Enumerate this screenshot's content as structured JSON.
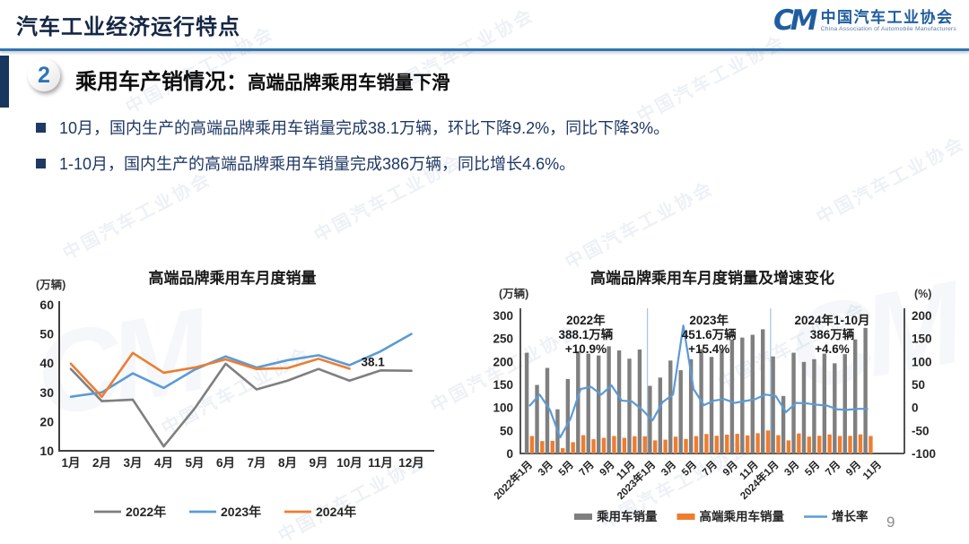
{
  "header": {
    "title": "汽车工业经济运行特点",
    "logo": {
      "mark": "CM",
      "org_cn": "中国汽车工业协会",
      "org_en": "China Association of Automobile Manufacturers"
    }
  },
  "section": {
    "number": "2",
    "title": "乘用车产销情况：",
    "subtitle": "高端品牌乘用车销量下滑"
  },
  "bullets": [
    "10月，国内生产的高端品牌乘用车销量完成38.1万辆，环比下降9.2%，同比下降3%。",
    "1-10月，国内生产的高端品牌乘用车销量完成386万辆，同比增长4.6%。"
  ],
  "page_number": "9",
  "watermark_text": "中国汽车工业协会",
  "colors": {
    "gray": "#7f7f7f",
    "blue": "#5b9bd5",
    "orange": "#ed7d31",
    "navy": "#1f3864",
    "rule_blue": "#2e75b6",
    "logo_blue": "#1f5da0",
    "axis": "#3f3f3f",
    "separator": "#a8c6e4",
    "text_dark": "#1a1a1a"
  },
  "chart_data": [
    {
      "type": "line",
      "title": "高端品牌乘用车月度销量",
      "unit": "(万辆)",
      "categories": [
        "1月",
        "2月",
        "3月",
        "4月",
        "5月",
        "6月",
        "7月",
        "8月",
        "9月",
        "10月",
        "11月",
        "12月"
      ],
      "axis_y": {
        "min": 10,
        "max": 60,
        "ticks": [
          10,
          20,
          30,
          40,
          50,
          60
        ]
      },
      "legend_position": "bottom",
      "grid": false,
      "series": [
        {
          "name": "2022年",
          "color": "gray",
          "values": [
            38,
            27,
            27.5,
            11.5,
            24.5,
            39.8,
            31,
            34,
            38,
            34,
            37.5,
            37.4
          ]
        },
        {
          "name": "2023年",
          "color": "blue",
          "values": [
            28.5,
            30,
            36.5,
            31.5,
            37.8,
            42.3,
            38.5,
            41,
            42.7,
            39.3,
            44,
            50
          ]
        },
        {
          "name": "2024年",
          "color": "orange",
          "values": [
            39.8,
            28.5,
            43.5,
            36.7,
            38.5,
            41.3,
            38,
            38.3,
            41.5,
            38.1
          ]
        }
      ],
      "point_label": {
        "text": "38.1",
        "series": "2024年",
        "index": 9
      }
    },
    {
      "type": "bar-line-combo",
      "title": "高端品牌乘用车月度销量及增速变化",
      "unit_left": "(万辆)",
      "unit_right": "(%)",
      "axis_left": {
        "min": 0,
        "max": 300,
        "ticks": [
          0,
          50,
          100,
          150,
          200,
          250,
          300
        ]
      },
      "axis_right": {
        "min": -100,
        "max": 200,
        "ticks": [
          -100,
          -50,
          0,
          50,
          100,
          150,
          200
        ]
      },
      "x_tick_labels": [
        "2022年1月",
        "3月",
        "5月",
        "7月",
        "9月",
        "11月",
        "2023年1月",
        "3月",
        "5月",
        "7月",
        "9月",
        "11月",
        "2024年1月",
        "3月",
        "5月",
        "7月",
        "9月",
        "11月"
      ],
      "total_slots": 36,
      "year_separator_slots": [
        12,
        24
      ],
      "legend_position": "bottom",
      "grid": false,
      "series": [
        {
          "name": "乘用车销量",
          "kind": "bar",
          "color": "gray",
          "values": [
            219,
            149,
            186,
            96,
            162,
            222,
            217,
            213,
            233,
            224,
            206,
            226,
            147,
            165,
            202,
            181,
            205,
            227,
            210,
            225,
            248,
            252,
            258,
            270,
            211,
            125,
            219,
            199,
            205,
            217,
            196,
            216,
            248,
            273
          ]
        },
        {
          "name": "高端乘用车销量",
          "kind": "bar",
          "color": "orange",
          "values": [
            38,
            27,
            27.5,
            11.5,
            24.5,
            39.8,
            31,
            34,
            38,
            34,
            37.5,
            37.4,
            28.5,
            30,
            36.5,
            31.5,
            37.8,
            42.3,
            38.5,
            41,
            42.7,
            39.3,
            44,
            50,
            39.8,
            28.5,
            43.5,
            36.7,
            38.5,
            41.3,
            38,
            38.3,
            41.5,
            38.1
          ]
        },
        {
          "name": "增长率",
          "kind": "line",
          "color": "blue",
          "values": [
            3,
            28,
            -5,
            -65,
            -25,
            40,
            45,
            28,
            48,
            15,
            13,
            -5,
            -28,
            12,
            28,
            178,
            40,
            5,
            15,
            18,
            10,
            14,
            18,
            28,
            25,
            -10,
            10,
            9,
            6,
            4,
            -4,
            -5,
            -3,
            -3
          ]
        }
      ],
      "annotations": [
        {
          "lines": [
            "2022年",
            "388.1万辆",
            "+10.9%"
          ],
          "slot_center": 5.5
        },
        {
          "lines": [
            "2023年",
            "451.6万辆",
            "+15.4%"
          ],
          "slot_center": 17.5
        },
        {
          "lines": [
            "2024年1-10月",
            "386万辆",
            "+4.6%"
          ],
          "slot_center": 29.5
        }
      ]
    }
  ]
}
